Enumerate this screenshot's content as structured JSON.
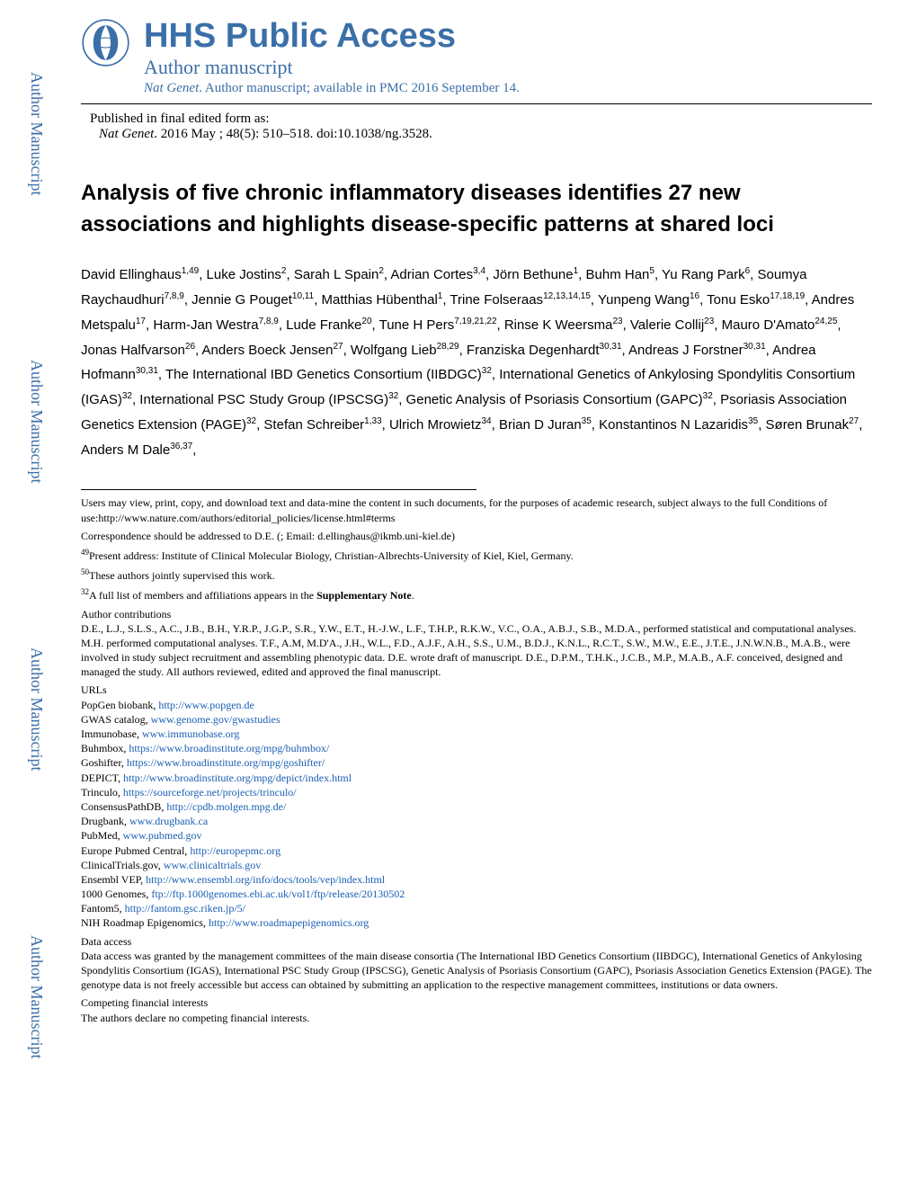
{
  "sidebar": {
    "label": "Author Manuscript",
    "positions": [
      0,
      320,
      640,
      960
    ],
    "color": "#3b6fa8"
  },
  "header": {
    "hhs_title": "HHS Public Access",
    "author_manuscript": "Author manuscript",
    "journal_italic": "Nat Genet",
    "journal_rest": ". Author manuscript; available in PMC 2016 September 14."
  },
  "published": {
    "line1": "Published in final edited form as:",
    "cite_italic": "Nat Genet",
    "cite_rest": ". 2016 May ; 48(5): 510–518. doi:10.1038/ng.3528."
  },
  "title": "Analysis of five chronic inflammatory diseases identifies 27 new associations and highlights disease-specific patterns at shared loci",
  "authors_html": "David Ellinghaus<sup>1,49</sup>, Luke Jostins<sup>2</sup>, Sarah L Spain<sup>2</sup>, Adrian Cortes<sup>3,4</sup>, Jörn Bethune<sup>1</sup>, Buhm Han<sup>5</sup>, Yu Rang Park<sup>6</sup>, Soumya Raychaudhuri<sup>7,8,9</sup>, Jennie G Pouget<sup>10,11</sup>, Matthias Hübenthal<sup>1</sup>, Trine Folseraas<sup>12,13,14,15</sup>, Yunpeng Wang<sup>16</sup>, Tonu Esko<sup>17,18,19</sup>, Andres Metspalu<sup>17</sup>, Harm-Jan Westra<sup>7,8,9</sup>, Lude Franke<sup>20</sup>, Tune H Pers<sup>7,19,21,22</sup>, Rinse K Weersma<sup>23</sup>, Valerie Collij<sup>23</sup>, Mauro D'Amato<sup>24,25</sup>, Jonas Halfvarson<sup>26</sup>, Anders Boeck Jensen<sup>27</sup>, Wolfgang Lieb<sup>28,29</sup>, Franziska Degenhardt<sup>30,31</sup>, Andreas J Forstner<sup>30,31</sup>, Andrea Hofmann<sup>30,31</sup>, The International IBD Genetics Consortium (IIBDGC)<sup>32</sup>, International Genetics of Ankylosing Spondylitis Consortium (IGAS)<sup>32</sup>, International PSC Study Group (IPSCSG)<sup>32</sup>, Genetic Analysis of Psoriasis Consortium (GAPC)<sup>32</sup>, Psoriasis Association Genetics Extension (PAGE)<sup>32</sup>, Stefan Schreiber<sup>1,33</sup>, Ulrich Mrowietz<sup>34</sup>, Brian D Juran<sup>35</sup>, Konstantinos N Lazaridis<sup>35</sup>, Søren Brunak<sup>27</sup>, Anders M Dale<sup>36,37</sup>,",
  "footnotes": {
    "users_may": "Users may view, print, copy, and download text and data-mine the content in such documents, for the purposes of academic research, subject always to the full Conditions of use:http://www.nature.com/authors/editorial_policies/license.html#terms",
    "correspondence": "Correspondence should be addressed to D.E. (; Email: d.ellinghaus@ikmb.uni-kiel.de)",
    "n49": "Present address: Institute of Clinical Molecular Biology, Christian-Albrechts-University of Kiel, Kiel, Germany.",
    "n50": "These authors jointly supervised this work.",
    "n32_pre": "A full list of members and affiliations appears in the ",
    "n32_bold": "Supplementary Note",
    "author_contrib_h": "Author contributions",
    "author_contrib": "D.E., L.J., S.L.S., A.C., J.B., B.H., Y.R.P., J.G.P., S.R., Y.W., E.T., H.-J.W., L.F., T.H.P., R.K.W., V.C., O.A., A.B.J., S.B., M.D.A., performed statistical and computational analyses. M.H. performed computational analyses. T.F., A.M, M.D'A., J.H., W.L., F.D., A.J.F., A.H., S.S., U.M., B.D.J., K.N.L., R.C.T., S.W., M.W., E.E., J.T.E., J.N.W.N.B., M.A.B., were involved in study subject recruitment and assembling phenotypic data. D.E. wrote draft of manuscript. D.E., D.P.M., T.H.K., J.C.B., M.P., M.A.B., A.F. conceived, designed and managed the study. All authors reviewed, edited and approved the final manuscript.",
    "urls_h": "URLs",
    "urls": [
      {
        "label": "PopGen biobank, ",
        "link": "http://www.popgen.de"
      },
      {
        "label": "GWAS catalog, ",
        "link": "www.genome.gov/gwastudies"
      },
      {
        "label": "Immunobase, ",
        "link": "www.immunobase.org"
      },
      {
        "label": "Buhmbox, ",
        "link": "https://www.broadinstitute.org/mpg/buhmbox/"
      },
      {
        "label": "Goshifter, ",
        "link": "https://www.broadinstitute.org/mpg/goshifter/"
      },
      {
        "label": "DEPICT, ",
        "link": "http://www.broadinstitute.org/mpg/depict/index.html"
      },
      {
        "label": "Trinculo, ",
        "link": "https://sourceforge.net/projects/trinculo/"
      },
      {
        "label": "ConsensusPathDB, ",
        "link": "http://cpdb.molgen.mpg.de/"
      },
      {
        "label": "Drugbank, ",
        "link": "www.drugbank.ca"
      },
      {
        "label": "PubMed, ",
        "link": "www.pubmed.gov"
      },
      {
        "label": "Europe Pubmed Central, ",
        "link": "http://europepmc.org"
      },
      {
        "label": "ClinicalTrials.gov, ",
        "link": "www.clinicaltrials.gov"
      },
      {
        "label": "Ensembl VEP, ",
        "link": "http://www.ensembl.org/info/docs/tools/vep/index.html"
      },
      {
        "label": "1000 Genomes, ",
        "link": "ftp://ftp.1000genomes.ebi.ac.uk/vol1/ftp/release/20130502"
      },
      {
        "label": "Fantom5, ",
        "link": "http://fantom.gsc.riken.jp/5/"
      },
      {
        "label": "NIH Roadmap Epigenomics, ",
        "link": "http://www.roadmapepigenomics.org"
      }
    ],
    "data_access_h": "Data access",
    "data_access": "Data access was granted by the management committees of the main disease consortia (The International IBD Genetics Consortium (IIBDGC), International Genetics of Ankylosing Spondylitis Consortium (IGAS), International PSC Study Group (IPSCSG), Genetic Analysis of Psoriasis Consortium (GAPC), Psoriasis Association Genetics Extension (PAGE). The genotype data is not freely accessible but access can obtained by submitting an application to the respective management committees, institutions or data owners.",
    "competing_h": "Competing financial interests",
    "competing": "The authors declare no competing financial interests."
  },
  "colors": {
    "blue": "#3b6fa8",
    "link": "#1a5fb4",
    "black": "#000000"
  }
}
